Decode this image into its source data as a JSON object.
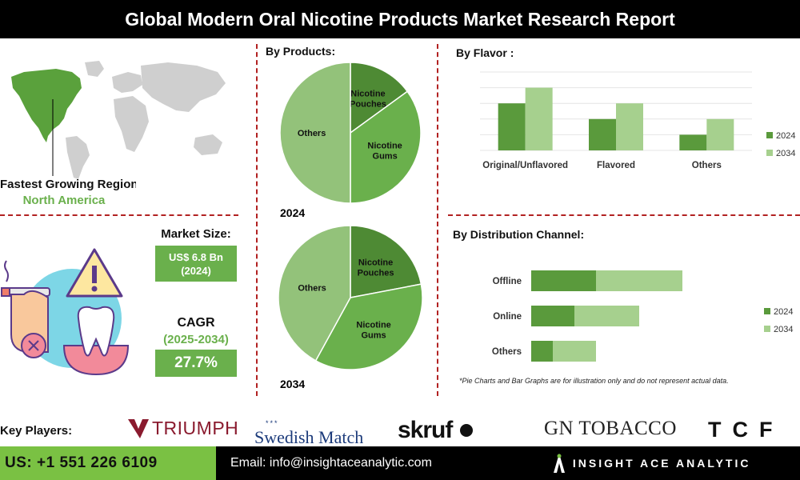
{
  "header": {
    "title": "Global Modern Oral Nicotine Products Market Research Report"
  },
  "region": {
    "label": "Fastest Growing Region:",
    "value": "North America"
  },
  "market_size": {
    "label": "Market Size:",
    "value": "US$ 6.8 Bn",
    "year": "(2024)"
  },
  "cagr": {
    "label": "CAGR",
    "period": "(2025-2034)",
    "value": "27.7%"
  },
  "sections": {
    "products": "By Products:",
    "flavor": "By Flavor :",
    "distribution": "By Distribution Channel:"
  },
  "colors": {
    "dark_green": "#5a9a3c",
    "mid_green": "#6ab04c",
    "light_green": "#9cc882",
    "accent": "#b22222"
  },
  "chart_data": [
    {
      "type": "pie",
      "title": "2024",
      "labels": [
        "Nicotine Pouches",
        "Nicotine Gums",
        "Others"
      ],
      "values": [
        15,
        35,
        50
      ],
      "colors": [
        "#4e8a34",
        "#6ab04c",
        "#93c27a"
      ]
    },
    {
      "type": "pie",
      "title": "2034",
      "labels": [
        "Nicotine Pouches",
        "Nicotine Gums",
        "Others"
      ],
      "values": [
        22,
        36,
        42
      ],
      "colors": [
        "#4e8a34",
        "#6ab04c",
        "#93c27a"
      ]
    },
    {
      "type": "bar",
      "title": "By Flavor :",
      "categories": [
        "Original/Unflavored",
        "Flavored",
        "Others"
      ],
      "series": [
        {
          "name": "2024",
          "values": [
            3,
            2,
            1
          ],
          "color": "#5a9a3c"
        },
        {
          "name": "2034",
          "values": [
            4,
            3,
            2
          ],
          "color": "#a6d08e"
        }
      ],
      "ylim": [
        0,
        5
      ],
      "grid": true,
      "legend": "right"
    },
    {
      "type": "bar",
      "orientation": "horizontal",
      "stacked": true,
      "title": "By Distribution Channel:",
      "categories": [
        "Offline",
        "Online",
        "Others"
      ],
      "series": [
        {
          "name": "2024",
          "values": [
            3,
            2,
            1
          ],
          "color": "#5a9a3c"
        },
        {
          "name": "2034",
          "values": [
            4,
            3,
            2
          ],
          "color": "#a6d08e"
        }
      ],
      "legend": "right"
    }
  ],
  "disclaimer": "*Pie Charts and Bar Graphs are for illustration only and do not represent actual data.",
  "key_players": {
    "label": "Key Players:",
    "logos": [
      "TRIUMPH",
      "Swedish Match",
      "skruf",
      "GN TOBACCO",
      "TCF"
    ]
  },
  "footer": {
    "phone": "US: +1 551 226 6109",
    "email": "Email: info@insightaceanalytic.com",
    "brand": "INSIGHT ACE ANALYTIC"
  }
}
